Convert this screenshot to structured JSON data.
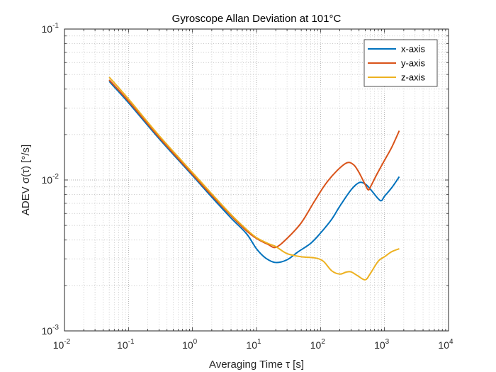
{
  "chart_data": {
    "type": "line",
    "title": "Gyroscope Allan Deviation at 101°C",
    "xlabel": "Averaging Time τ [s]",
    "ylabel": "ADEV σ(τ) [°/s]",
    "xscale": "log",
    "yscale": "log",
    "xlim": [
      0.01,
      10000
    ],
    "ylim": [
      0.001,
      0.1
    ],
    "grid": true,
    "minor_grid": true,
    "legend_position": "top-right",
    "x_ticks": [
      {
        "base": "10",
        "exp": "-2"
      },
      {
        "base": "10",
        "exp": "-1"
      },
      {
        "base": "10",
        "exp": "0"
      },
      {
        "base": "10",
        "exp": "1"
      },
      {
        "base": "10",
        "exp": "2"
      },
      {
        "base": "10",
        "exp": "3"
      },
      {
        "base": "10",
        "exp": "4"
      }
    ],
    "y_ticks": [
      {
        "base": "10",
        "exp": "-3"
      },
      {
        "base": "10",
        "exp": "-2"
      },
      {
        "base": "10",
        "exp": "-1"
      }
    ],
    "series": [
      {
        "name": "x-axis",
        "color": "#0072BD",
        "points": [
          [
            0.05,
            0.045
          ],
          [
            0.1,
            0.0325
          ],
          [
            0.3,
            0.0188
          ],
          [
            1,
            0.0107
          ],
          [
            2,
            0.0077
          ],
          [
            4,
            0.0056
          ],
          [
            7,
            0.0044
          ],
          [
            10,
            0.0035
          ],
          [
            14,
            0.00303
          ],
          [
            20,
            0.00284
          ],
          [
            30,
            0.00296
          ],
          [
            45,
            0.00335
          ],
          [
            70,
            0.0038
          ],
          [
            100,
            0.00445
          ],
          [
            150,
            0.0055
          ],
          [
            200,
            0.0067
          ],
          [
            300,
            0.0086
          ],
          [
            400,
            0.0096
          ],
          [
            500,
            0.0094
          ],
          [
            600,
            0.0087
          ],
          [
            800,
            0.0075
          ],
          [
            900,
            0.0073
          ],
          [
            1000,
            0.0078
          ],
          [
            1300,
            0.0089
          ],
          [
            1700,
            0.0105
          ]
        ]
      },
      {
        "name": "y-axis",
        "color": "#D95319",
        "points": [
          [
            0.05,
            0.046
          ],
          [
            0.1,
            0.0333
          ],
          [
            0.3,
            0.0192
          ],
          [
            1,
            0.0109
          ],
          [
            2,
            0.0079
          ],
          [
            4,
            0.0058
          ],
          [
            7,
            0.0046
          ],
          [
            10,
            0.0041
          ],
          [
            15,
            0.00375
          ],
          [
            20,
            0.00358
          ],
          [
            30,
            0.0041
          ],
          [
            50,
            0.0052
          ],
          [
            80,
            0.0072
          ],
          [
            120,
            0.0094
          ],
          [
            180,
            0.0115
          ],
          [
            260,
            0.013
          ],
          [
            330,
            0.0126
          ],
          [
            400,
            0.0112
          ],
          [
            500,
            0.0093
          ],
          [
            560,
            0.0086
          ],
          [
            620,
            0.0092
          ],
          [
            750,
            0.0108
          ],
          [
            1000,
            0.0135
          ],
          [
            1300,
            0.0165
          ],
          [
            1700,
            0.0212
          ]
        ]
      },
      {
        "name": "z-axis",
        "color": "#EDB120",
        "points": [
          [
            0.05,
            0.048
          ],
          [
            0.1,
            0.0344
          ],
          [
            0.3,
            0.0197
          ],
          [
            1,
            0.0112
          ],
          [
            2,
            0.0081
          ],
          [
            4,
            0.0059
          ],
          [
            7,
            0.0047
          ],
          [
            10,
            0.00415
          ],
          [
            15,
            0.0038
          ],
          [
            20,
            0.00362
          ],
          [
            30,
            0.00325
          ],
          [
            50,
            0.0031
          ],
          [
            80,
            0.00305
          ],
          [
            110,
            0.0029
          ],
          [
            150,
            0.0025
          ],
          [
            200,
            0.00238
          ],
          [
            250,
            0.00245
          ],
          [
            300,
            0.00246
          ],
          [
            380,
            0.00232
          ],
          [
            500,
            0.00218
          ],
          [
            600,
            0.0024
          ],
          [
            800,
            0.0029
          ],
          [
            1000,
            0.0031
          ],
          [
            1300,
            0.00335
          ],
          [
            1700,
            0.0035
          ]
        ]
      }
    ]
  }
}
